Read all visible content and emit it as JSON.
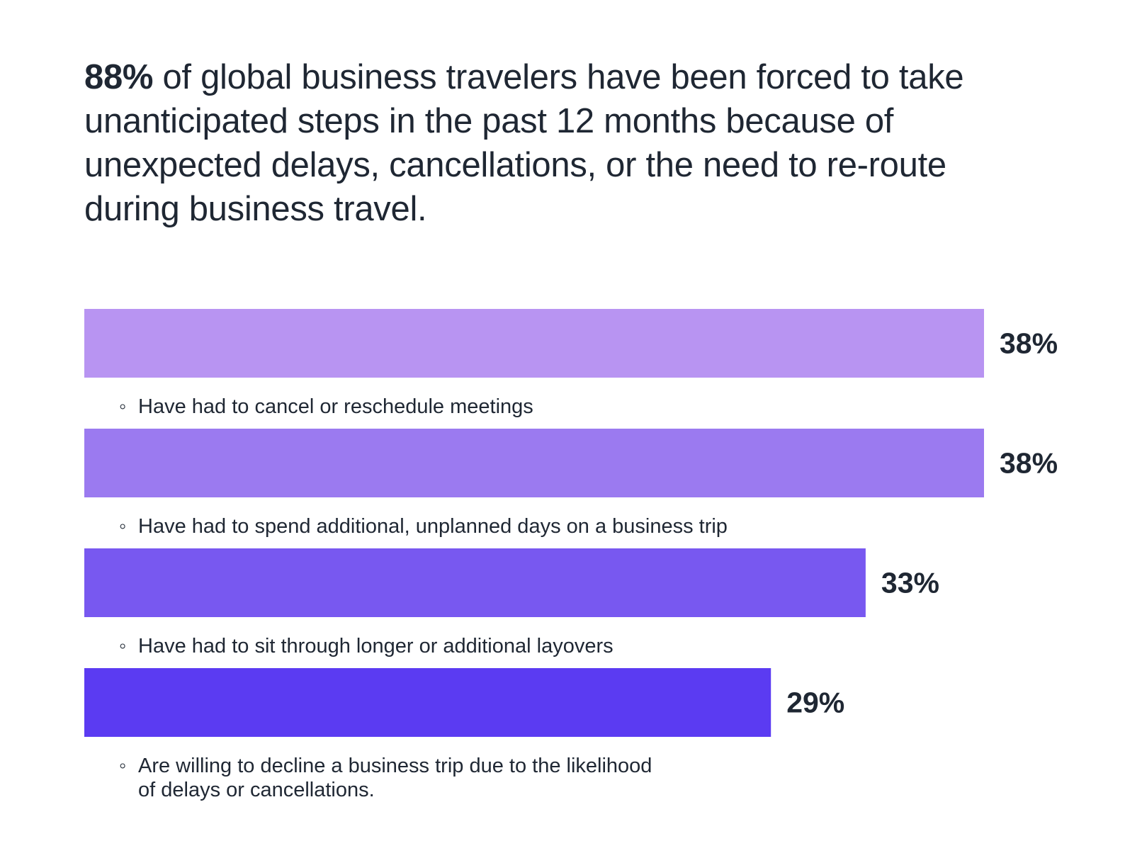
{
  "headline": {
    "stat": "88%",
    "text": " of global business travelers have been forced to take unanticipated steps in the past 12 months because of unexpected delays, cancellations, or the need to re-route during business travel."
  },
  "chart_data": {
    "type": "bar",
    "orientation": "horizontal",
    "categories": [
      "Have had to cancel or reschedule meetings",
      "Have had to spend additional, unplanned days on a business trip",
      "Have had to sit through longer or additional layovers",
      "Are willing to decline a business trip due to the likelihood of delays or cancellations."
    ],
    "category_lines": [
      [
        "Have had to cancel or reschedule meetings"
      ],
      [
        "Have had to spend additional, unplanned days on a business trip"
      ],
      [
        "Have had to sit through longer or additional layovers"
      ],
      [
        "Are willing to decline a business trip due to the likelihood",
        "of delays or cancellations."
      ]
    ],
    "values": [
      38,
      38,
      33,
      29
    ],
    "value_labels": [
      "38%",
      "38%",
      "33%",
      "29%"
    ],
    "colors": [
      "#b894f2",
      "#9b7af0",
      "#7858f0",
      "#5b3bf2"
    ],
    "bullet": "◦",
    "title": "",
    "xlabel": "",
    "ylabel": "",
    "legend": "none",
    "grid": false
  }
}
